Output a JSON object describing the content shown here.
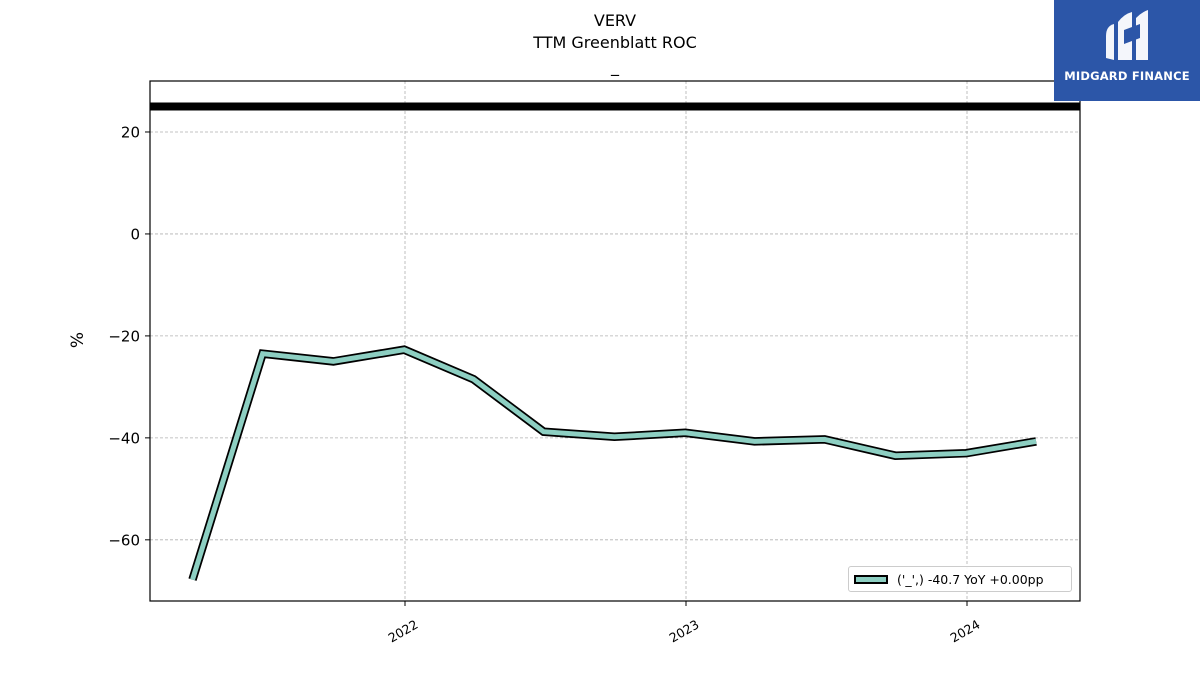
{
  "title": {
    "line1": "VERV",
    "line2": "TTM Greenblatt ROC",
    "line3": "_"
  },
  "logo": {
    "text": "MIDGARD FINANCE",
    "color": "#2c56a8"
  },
  "chart_data": {
    "type": "line",
    "ylabel": "%",
    "xlabel": "",
    "ylim": [
      -72,
      30
    ],
    "grid": true,
    "y_ticks": [
      20,
      0,
      -20,
      -40,
      -60
    ],
    "y_tick_labels": [
      "20",
      "0",
      "−20",
      "−40",
      "−60"
    ],
    "x_ticks": [
      "2022",
      "2023",
      "2024"
    ],
    "reference_line": 25,
    "series": [
      {
        "name": "('_',) -40.7 YoY +0.00pp",
        "color": "#8dcfc2",
        "x": [
          "2021-03-31",
          "2021-06-30",
          "2021-09-30",
          "2021-12-31",
          "2022-03-31",
          "2022-06-30",
          "2022-09-30",
          "2022-12-31",
          "2023-03-31",
          "2023-06-30",
          "2023-09-30",
          "2023-12-31",
          "2024-03-31"
        ],
        "values": [
          -67.8,
          -23.5,
          -25.0,
          -22.7,
          -28.5,
          -38.8,
          -39.8,
          -39.0,
          -40.7,
          -40.3,
          -43.5,
          -43.0,
          -40.7
        ]
      }
    ],
    "legend_position": "lower-right"
  }
}
